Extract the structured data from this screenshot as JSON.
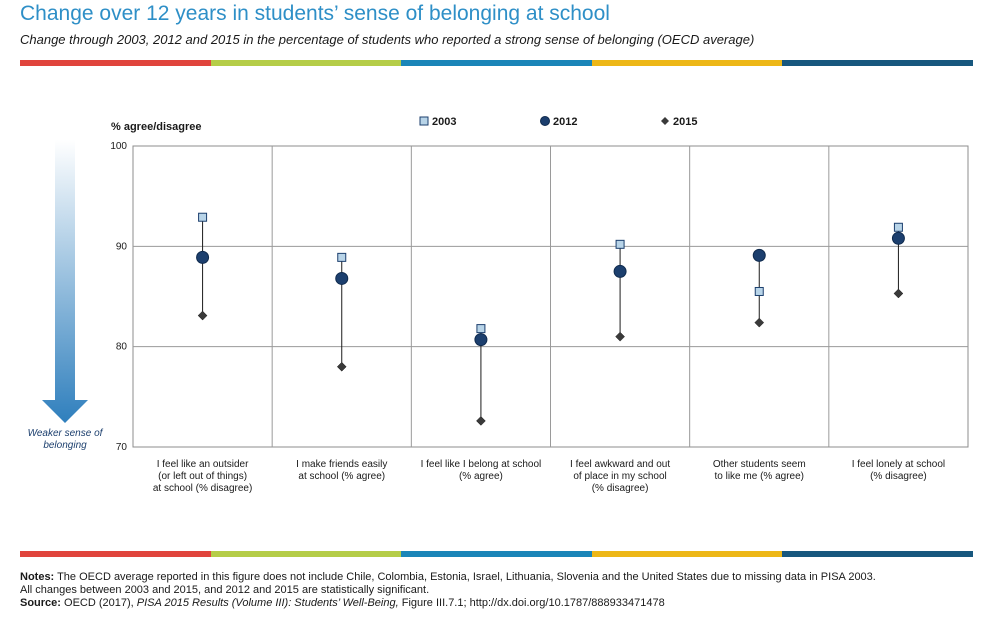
{
  "header": {
    "title": "Change over 12 years in students’ sense of belonging at school",
    "subtitle": "Change through 2003, 2012 and 2015 in the percentage of students who reported a strong sense of belonging (OECD average)"
  },
  "colors": {
    "stripe": [
      "#e0443c",
      "#b5cd48",
      "#1a85b8",
      "#edb717",
      "#17577e"
    ],
    "series_2003": "#b8d4e8",
    "series_2012": "#1c3f6e",
    "series_2015": "#3a3a3a",
    "arrow_top": "#ffffff",
    "arrow_bottom": "#2f7fbd"
  },
  "chart_data": {
    "type": "scatter",
    "ylabel": "% agree/disagree",
    "ylim": [
      70,
      100
    ],
    "yticks": [
      70,
      80,
      90,
      100
    ],
    "grid": true,
    "legend_position": "top",
    "arrow_label_line1": "Weaker sense of",
    "arrow_label_line2": "belonging",
    "categories": [
      [
        "I feel like an outsider",
        "(or left out of things)",
        "at school (% disagree)"
      ],
      [
        "I make friends easily",
        "at school (% agree)"
      ],
      [
        "I feel like I belong at school",
        "(% agree)"
      ],
      [
        "I feel awkward and out",
        "of place in my school",
        "(% disagree)"
      ],
      [
        "Other students seem",
        "to like me (% agree)"
      ],
      [
        "I feel lonely at school",
        "(% disagree)"
      ]
    ],
    "series": [
      {
        "name": "2003",
        "marker": "square",
        "values": [
          92.9,
          88.9,
          81.8,
          90.2,
          85.5,
          91.9
        ]
      },
      {
        "name": "2012",
        "marker": "circle",
        "values": [
          88.9,
          86.8,
          80.7,
          87.5,
          89.1,
          90.8
        ]
      },
      {
        "name": "2015",
        "marker": "diamond",
        "values": [
          83.1,
          78.0,
          72.6,
          81.0,
          82.4,
          85.3
        ]
      }
    ]
  },
  "footer": {
    "notes_label": "Notes:",
    "notes_text": " The OECD average reported in this figure does not include Chile, Colombia, Estonia, Israel, Lithuania, Slovenia and the United States due to missing data in PISA 2003.",
    "notes_line2": "All changes between 2003 and 2015, and 2012 and 2015 are statistically significant.",
    "source_label": "Source:",
    "source_pre": " OECD (2017), ",
    "source_italic": "PISA 2015 Results (Volume III): Students’ Well-Being,",
    "source_post": " Figure III.7.1; http://dx.doi.org/10.1787/888933471478"
  }
}
